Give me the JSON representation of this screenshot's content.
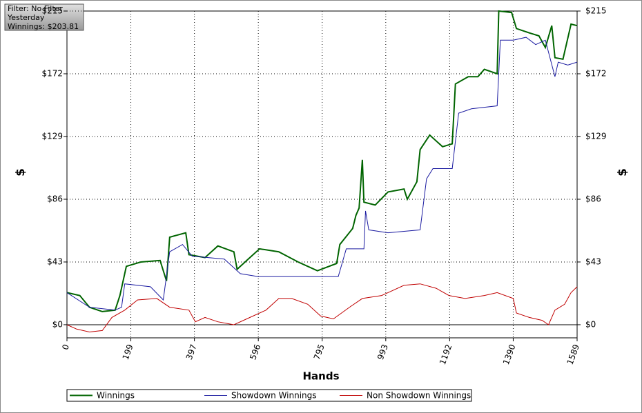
{
  "chart_data": {
    "type": "line",
    "info_box": [
      "Filter: No Filter",
      "Yesterday",
      "Winnings: $203.81"
    ],
    "x_label": "Hands",
    "y_label": "$",
    "y2_label": "$",
    "xlim": [
      0,
      1589
    ],
    "ylim": [
      -9,
      215
    ],
    "xticks": [
      0,
      199,
      397,
      596,
      795,
      993,
      1192,
      1390,
      1589
    ],
    "yticks": [
      {
        "value": 0,
        "label": "$0"
      },
      {
        "value": 43,
        "label": "$43"
      },
      {
        "value": 86,
        "label": "$86"
      },
      {
        "value": 129,
        "label": "$129"
      },
      {
        "value": 172,
        "label": "$172"
      },
      {
        "value": 215,
        "label": "$215"
      }
    ],
    "grid": true,
    "series": [
      {
        "name": "Winnings",
        "color": "#006400",
        "x": [
          0,
          40,
          70,
          110,
          150,
          165,
          185,
          230,
          290,
          310,
          320,
          370,
          380,
          430,
          470,
          520,
          530,
          560,
          600,
          660,
          720,
          780,
          840,
          850,
          890,
          900,
          910,
          920,
          925,
          960,
          1000,
          1050,
          1060,
          1090,
          1100,
          1130,
          1170,
          1200,
          1210,
          1250,
          1280,
          1300,
          1340,
          1345,
          1385,
          1400,
          1440,
          1470,
          1490,
          1510,
          1520,
          1545,
          1570,
          1589
        ],
        "values": [
          22,
          20,
          12,
          9,
          10,
          20,
          40,
          43,
          44,
          30,
          60,
          63,
          48,
          46,
          54,
          50,
          38,
          44,
          52,
          50,
          43,
          37,
          42,
          55,
          66,
          75,
          80,
          113,
          84,
          82,
          91,
          93,
          86,
          98,
          120,
          130,
          122,
          124,
          165,
          170,
          170,
          175,
          172,
          215,
          214,
          203,
          200,
          198,
          190,
          205,
          183,
          182,
          206,
          205
        ]
      },
      {
        "name": "Showdown Winnings",
        "color": "#1a1aa0",
        "x": [
          0,
          70,
          150,
          170,
          180,
          260,
          300,
          320,
          360,
          390,
          490,
          540,
          595,
          710,
          845,
          870,
          925,
          930,
          940,
          1000,
          1100,
          1120,
          1140,
          1200,
          1220,
          1260,
          1340,
          1350,
          1390,
          1430,
          1460,
          1490,
          1520,
          1530,
          1560,
          1589
        ],
        "values": [
          22,
          12,
          10,
          12,
          28,
          26,
          17,
          50,
          55,
          47,
          45,
          35,
          33,
          33,
          33,
          52,
          52,
          78,
          65,
          63,
          65,
          100,
          107,
          107,
          145,
          148,
          150,
          195,
          195,
          197,
          192,
          195,
          170,
          180,
          178,
          180
        ]
      },
      {
        "name": "Non Showdown Winnings",
        "color": "#c00000",
        "x": [
          0,
          30,
          70,
          110,
          140,
          180,
          220,
          280,
          320,
          380,
          400,
          430,
          470,
          520,
          560,
          620,
          660,
          700,
          750,
          790,
          830,
          880,
          920,
          980,
          1000,
          1050,
          1100,
          1150,
          1190,
          1240,
          1300,
          1340,
          1390,
          1400,
          1440,
          1480,
          1500,
          1520,
          1550,
          1570,
          1589
        ],
        "values": [
          0,
          -3,
          -5,
          -4,
          5,
          10,
          17,
          18,
          12,
          10,
          2,
          5,
          2,
          0,
          4,
          10,
          18,
          18,
          14,
          6,
          4,
          12,
          18,
          20,
          22,
          27,
          28,
          25,
          20,
          18,
          20,
          22,
          18,
          8,
          5,
          3,
          0,
          10,
          14,
          22,
          26
        ]
      }
    ]
  }
}
